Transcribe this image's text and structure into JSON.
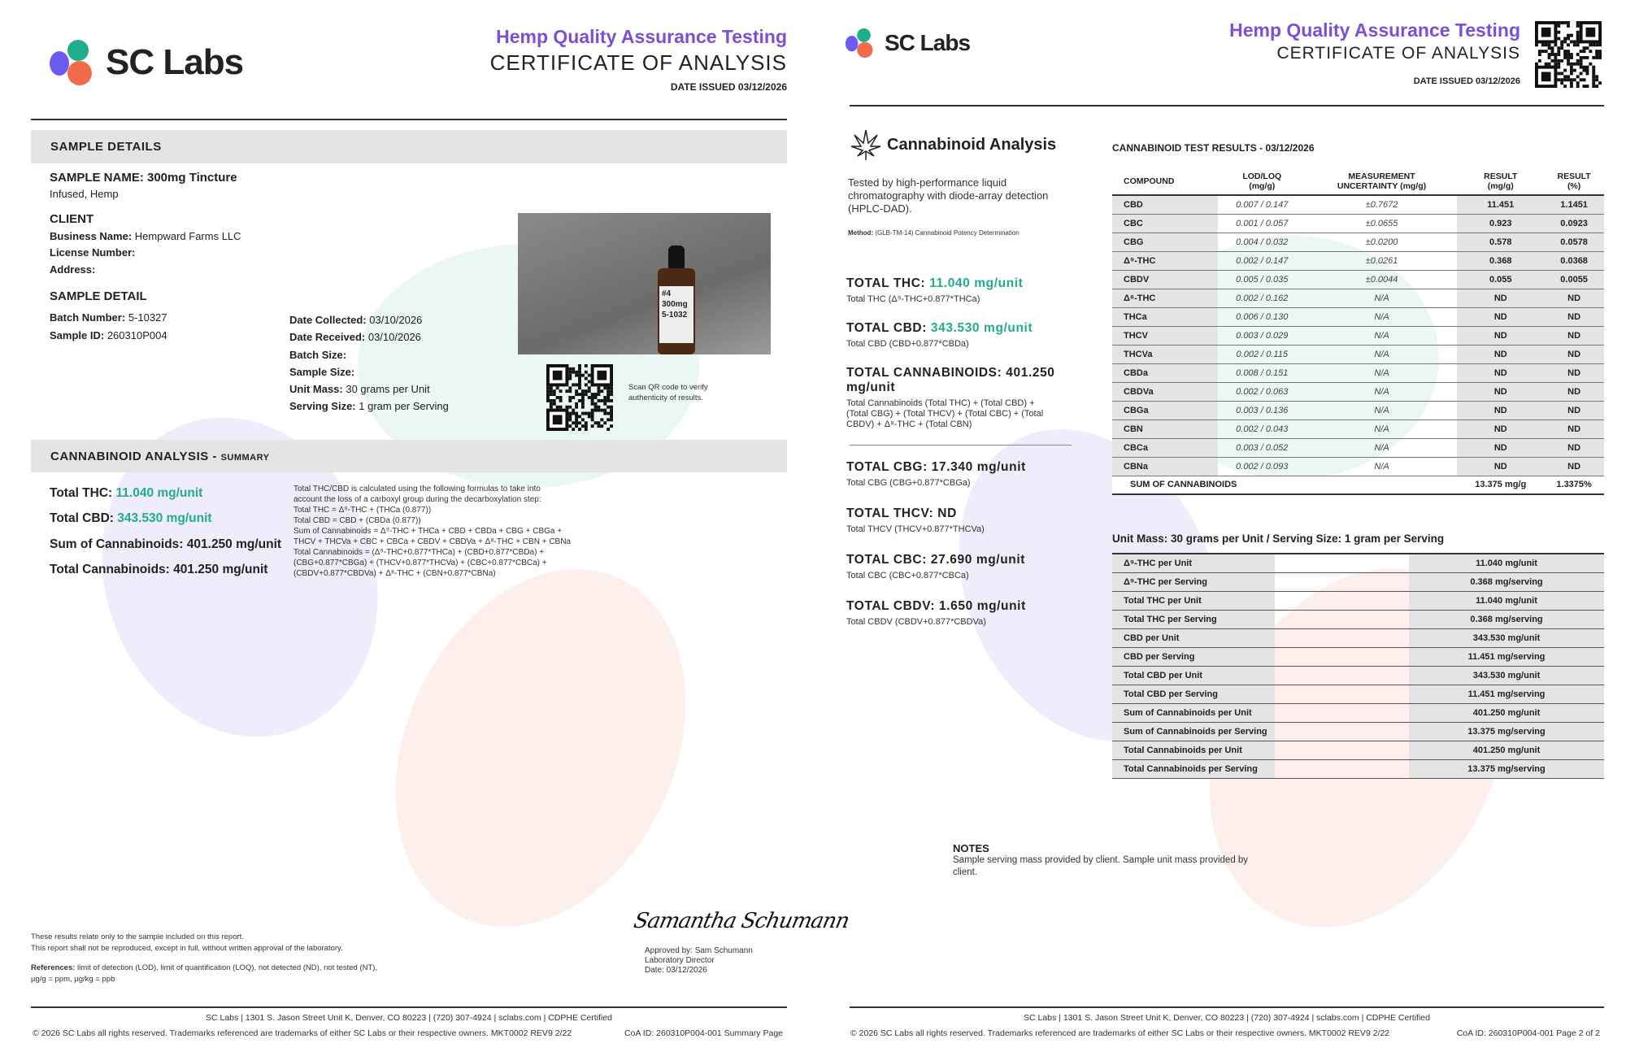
{
  "brand": {
    "name": "SC Labs",
    "colors": {
      "purple": "#7b4fd6",
      "green": "#1fae8c",
      "orange": "#f26b4a",
      "blue": "#6a5cf0"
    }
  },
  "header": {
    "title1": "Hemp Quality Assurance Testing",
    "title2": "CERTIFICATE OF ANALYSIS",
    "date_issued": "DATE ISSUED 03/12/2026"
  },
  "page1": {
    "sample_details_heading": "SAMPLE DETAILS",
    "sample_name": "SAMPLE NAME: 300mg Tincture",
    "sample_type": "Infused, Hemp",
    "client_heading": "CLIENT",
    "business_label": "Business Name:",
    "business_value": "Hempward Farms LLC",
    "license_label": "License Number:",
    "address_label": "Address:",
    "sample_detail_heading": "SAMPLE DETAIL",
    "batch_label": "Batch Number:",
    "batch_value": "5-10327",
    "sample_id_label": "Sample ID:",
    "sample_id_value": "260310P004",
    "date_collected_label": "Date Collected:",
    "date_collected_value": "03/10/2026",
    "date_received_label": "Date Received:",
    "date_received_value": "03/10/2026",
    "batch_size_label": "Batch Size:",
    "sample_size_label": "Sample Size:",
    "unit_mass_label": "Unit Mass:",
    "unit_mass_value": "30 grams per Unit",
    "serving_size_label": "Serving Size:",
    "serving_size_value": "1 gram per Serving",
    "photo_label": "#4 300mg 5-1032",
    "qr_caption": "Scan QR code to verify authenticity of results.",
    "summary_heading": "CANNABINOID ANALYSIS -",
    "summary_heading_small": "SUMMARY",
    "total_thc_label": "Total THC:",
    "total_thc_value": "11.040 mg/unit",
    "total_cbd_label": "Total CBD:",
    "total_cbd_value": "343.530 mg/unit",
    "sum_cannabinoids": "Sum of Cannabinoids: 401.250 mg/unit",
    "total_cannabinoids": "Total Cannabinoids: 401.250 mg/unit",
    "formula_lines": [
      "Total THC/CBD is calculated using the following formulas to take into",
      "account the loss of a carboxyl group during the decarboxylation step:",
      "Total THC = Δ⁹-THC + (THCa (0.877))",
      "Total CBD = CBD + (CBDa (0.877))",
      "Sum of Cannabinoids = Δ⁹-THC + THCa + CBD + CBDa + CBG + CBGa +",
      "THCV + THCVa + CBC + CBCa + CBDV + CBDVa + Δ⁸-THC + CBN + CBNa",
      "Total Cannabinoids = (Δ⁹-THC+0.877*THCa) + (CBD+0.877*CBDa) +",
      "(CBG+0.877*CBGa) + (THCV+0.877*THCVa) + (CBC+0.877*CBCa) +",
      "(CBDV+0.877*CBDVa) + Δ⁸-THC + (CBN+0.877*CBNa)"
    ],
    "disclaimer1": "These results relate only to the sample included on this report.",
    "disclaimer2": "This report shall not be reproduced, except in full, without written approval of the laboratory.",
    "references_label": "References:",
    "references_text": "limit of detection (LOD), limit of quantification (LOQ), not detected (ND), not tested (NT),",
    "references_text2": "µg/g = ppm, µg/kg = ppb",
    "signature": "Samantha Schumann",
    "approved_by": "Approved by: Sam Schumann",
    "approver_title": "Laboratory Director",
    "approval_date": "Date: 03/12/2026",
    "page_label": "CoA ID: 260310P004-001  Summary Page"
  },
  "footer": {
    "address": "SC Labs | 1301 S. Jason Street Unit K, Denver, CO 80223 | (720) 307-4924 | sclabs.com | CDPHE Certified",
    "copyright": "© 2026 SC Labs all rights reserved. Trademarks referenced are trademarks of either SC Labs or their respective owners. MKT0002 REV9 2/22"
  },
  "page2": {
    "section_title": "Cannabinoid Analysis",
    "method_desc": "Tested by high-performance liquid chromatography with diode-array detection (HPLC-DAD).",
    "method_label": "Method:",
    "method_text": "(GLB-TM-14) Cannabinoid Potency Determination",
    "totals": [
      {
        "label": "TOTAL THC:",
        "value": "11.040 mg/unit",
        "highlight": true,
        "sub": "Total THC (Δ⁹-THC+0.877*THCa)"
      },
      {
        "label": "TOTAL CBD:",
        "value": "343.530 mg/unit",
        "highlight": true,
        "sub": "Total CBD (CBD+0.877*CBDa)"
      },
      {
        "label": "TOTAL CANNABINOIDS:",
        "value": "401.250 mg/unit",
        "highlight": false,
        "sub": "Total Cannabinoids (Total THC) + (Total CBD) + (Total CBG) + (Total THCV) + (Total CBC) + (Total CBDV) + Δ⁸-THC + (Total CBN)"
      }
    ],
    "totals2": [
      {
        "label": "TOTAL CBG:",
        "value": "17.340 mg/unit",
        "sub": "Total CBG (CBG+0.877*CBGa)"
      },
      {
        "label": "TOTAL THCV:",
        "value": "ND",
        "sub": "Total THCV (THCV+0.877*THCVa)"
      },
      {
        "label": "TOTAL CBC:",
        "value": "27.690 mg/unit",
        "sub": "Total CBC (CBC+0.877*CBCa)"
      },
      {
        "label": "TOTAL CBDV:",
        "value": "1.650 mg/unit",
        "sub": "Total CBDV (CBDV+0.877*CBDVa)"
      }
    ],
    "results_title": "CANNABINOID TEST RESULTS - 03/12/2026",
    "columns": [
      "COMPOUND",
      "LOD/LOQ\n(mg/g)",
      "MEASUREMENT\nUNCERTAINTY (mg/g)",
      "RESULT\n(mg/g)",
      "RESULT\n(%)"
    ],
    "rows": [
      [
        "CBD",
        "0.007 / 0.147",
        "±0.7672",
        "11.451",
        "1.1451"
      ],
      [
        "CBC",
        "0.001 / 0.057",
        "±0.0655",
        "0.923",
        "0.0923"
      ],
      [
        "CBG",
        "0.004 / 0.032",
        "±0.0200",
        "0.578",
        "0.0578"
      ],
      [
        "Δ⁹-THC",
        "0.002 / 0.147",
        "±0.0261",
        "0.368",
        "0.0368"
      ],
      [
        "CBDV",
        "0.005 / 0.035",
        "±0.0044",
        "0.055",
        "0.0055"
      ],
      [
        "Δ⁸-THC",
        "0.002 / 0.162",
        "N/A",
        "ND",
        "ND"
      ],
      [
        "THCa",
        "0.006 / 0.130",
        "N/A",
        "ND",
        "ND"
      ],
      [
        "THCV",
        "0.003 / 0.029",
        "N/A",
        "ND",
        "ND"
      ],
      [
        "THCVa",
        "0.002 / 0.115",
        "N/A",
        "ND",
        "ND"
      ],
      [
        "CBDa",
        "0.008 / 0.151",
        "N/A",
        "ND",
        "ND"
      ],
      [
        "CBDVa",
        "0.002 / 0.063",
        "N/A",
        "ND",
        "ND"
      ],
      [
        "CBGa",
        "0.003 / 0.136",
        "N/A",
        "ND",
        "ND"
      ],
      [
        "CBN",
        "0.002 / 0.043",
        "N/A",
        "ND",
        "ND"
      ],
      [
        "CBCa",
        "0.003 / 0.052",
        "N/A",
        "ND",
        "ND"
      ],
      [
        "CBNa",
        "0.002 / 0.093",
        "N/A",
        "ND",
        "ND"
      ]
    ],
    "sum_row": [
      "SUM OF CANNABINOIDS",
      "13.375 mg/g",
      "1.3375%"
    ],
    "unit_title": "Unit Mass: 30 grams per Unit / Serving Size: 1 gram per Serving",
    "unit_rows": [
      [
        "Δ⁹-THC per Unit",
        "11.040 mg/unit"
      ],
      [
        "Δ⁹-THC per Serving",
        "0.368 mg/serving"
      ],
      [
        "Total THC per Unit",
        "11.040 mg/unit"
      ],
      [
        "Total THC per Serving",
        "0.368 mg/serving"
      ],
      [
        "CBD per Unit",
        "343.530 mg/unit"
      ],
      [
        "CBD per Serving",
        "11.451 mg/serving"
      ],
      [
        "Total CBD per Unit",
        "343.530 mg/unit"
      ],
      [
        "Total CBD per Serving",
        "11.451 mg/serving"
      ],
      [
        "Sum of Cannabinoids per Unit",
        "401.250 mg/unit"
      ],
      [
        "Sum of Cannabinoids per Serving",
        "13.375 mg/serving"
      ],
      [
        "Total Cannabinoids per Unit",
        "401.250 mg/unit"
      ],
      [
        "Total Cannabinoids per Serving",
        "13.375 mg/serving"
      ]
    ],
    "notes_heading": "NOTES",
    "notes_text": "Sample serving mass provided by client. Sample unit mass provided by client.",
    "page_label": "CoA ID: 260310P004-001  Page 2 of 2"
  }
}
